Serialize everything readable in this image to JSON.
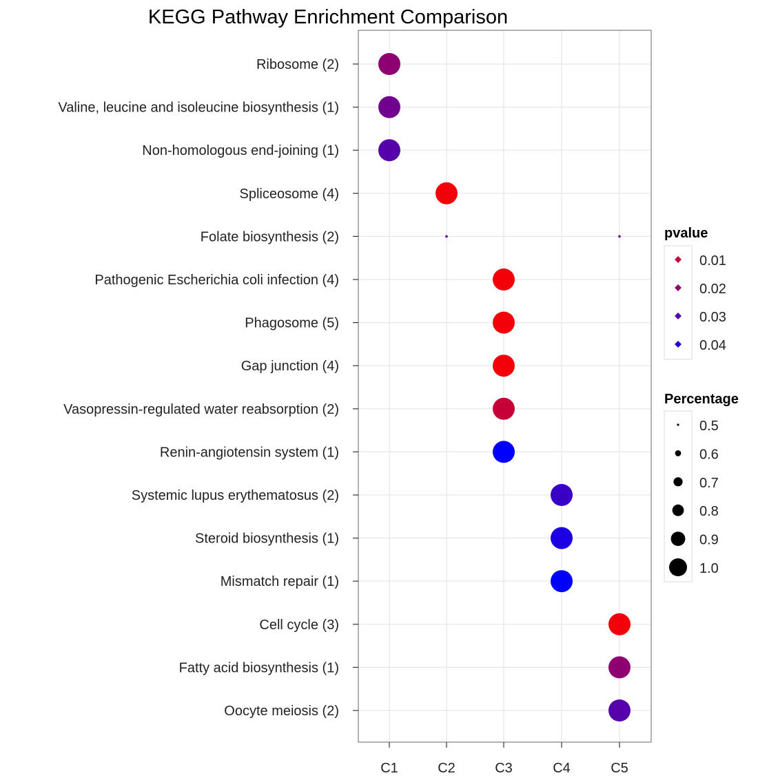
{
  "chart_data": {
    "type": "scatter",
    "title": "KEGG Pathway Enrichment Comparison",
    "categories_x": [
      "C1",
      "C2",
      "C3",
      "C4",
      "C5"
    ],
    "categories_y": [
      "Ribosome (2)",
      "Valine, leucine and isoleucine biosynthesis (1)",
      "Non-homologous end-joining (1)",
      "Spliceosome (4)",
      "Folate biosynthesis (2)",
      "Pathogenic Escherichia coli infection (4)",
      "Phagosome (5)",
      "Gap junction (4)",
      "Vasopressin-regulated water reabsorption (2)",
      "Renin-angiotensin system (1)",
      "Systemic lupus erythematosus (2)",
      "Steroid biosynthesis (1)",
      "Mismatch repair (1)",
      "Cell cycle (3)",
      "Fatty acid biosynthesis (1)",
      "Oocyte meiosis (2)"
    ],
    "points": [
      {
        "x": "C1",
        "y": "Ribosome (2)",
        "pvalue": 0.02,
        "percentage": 1.0
      },
      {
        "x": "C1",
        "y": "Valine, leucine and isoleucine biosynthesis (1)",
        "pvalue": 0.025,
        "percentage": 1.0
      },
      {
        "x": "C1",
        "y": "Non-homologous end-joining (1)",
        "pvalue": 0.03,
        "percentage": 1.0
      },
      {
        "x": "C2",
        "y": "Spliceosome (4)",
        "pvalue": 0.002,
        "percentage": 1.0
      },
      {
        "x": "C2",
        "y": "Folate biosynthesis (2)",
        "pvalue": 0.03,
        "percentage": 0.5
      },
      {
        "x": "C5",
        "y": "Folate biosynthesis (2)",
        "pvalue": 0.03,
        "percentage": 0.5
      },
      {
        "x": "C3",
        "y": "Pathogenic Escherichia coli infection (4)",
        "pvalue": 0.002,
        "percentage": 1.0
      },
      {
        "x": "C3",
        "y": "Phagosome (5)",
        "pvalue": 0.002,
        "percentage": 1.0
      },
      {
        "x": "C3",
        "y": "Gap junction (4)",
        "pvalue": 0.002,
        "percentage": 1.0
      },
      {
        "x": "C3",
        "y": "Vasopressin-regulated water reabsorption (2)",
        "pvalue": 0.01,
        "percentage": 1.0
      },
      {
        "x": "C3",
        "y": "Renin-angiotensin system (1)",
        "pvalue": 0.045,
        "percentage": 1.0
      },
      {
        "x": "C4",
        "y": "Systemic lupus erythematosus (2)",
        "pvalue": 0.035,
        "percentage": 1.0
      },
      {
        "x": "C4",
        "y": "Steroid biosynthesis (1)",
        "pvalue": 0.04,
        "percentage": 1.0
      },
      {
        "x": "C4",
        "y": "Mismatch repair (1)",
        "pvalue": 0.045,
        "percentage": 1.0
      },
      {
        "x": "C5",
        "y": "Cell cycle (3)",
        "pvalue": 0.002,
        "percentage": 1.0
      },
      {
        "x": "C5",
        "y": "Fatty acid biosynthesis (1)",
        "pvalue": 0.02,
        "percentage": 1.0
      },
      {
        "x": "C5",
        "y": "Oocyte meiosis (2)",
        "pvalue": 0.03,
        "percentage": 1.0
      }
    ],
    "color_scale": {
      "low_color": "#ff0000",
      "high_color": "#0000ff",
      "low": 0.0,
      "high": 0.045
    },
    "grid": true,
    "legend_placement": "right",
    "legends": {
      "pvalue": {
        "title": "pvalue",
        "items": [
          {
            "label": "0.01",
            "value": 0.01
          },
          {
            "label": "0.02",
            "value": 0.02
          },
          {
            "label": "0.03",
            "value": 0.03
          },
          {
            "label": "0.04",
            "value": 0.04
          }
        ]
      },
      "percentage": {
        "title": "Percentage",
        "items": [
          {
            "label": "0.5",
            "value": 0.5
          },
          {
            "label": "0.6",
            "value": 0.6
          },
          {
            "label": "0.7",
            "value": 0.7
          },
          {
            "label": "0.8",
            "value": 0.8
          },
          {
            "label": "0.9",
            "value": 0.9
          },
          {
            "label": "1.0",
            "value": 1.0
          }
        ]
      }
    }
  }
}
